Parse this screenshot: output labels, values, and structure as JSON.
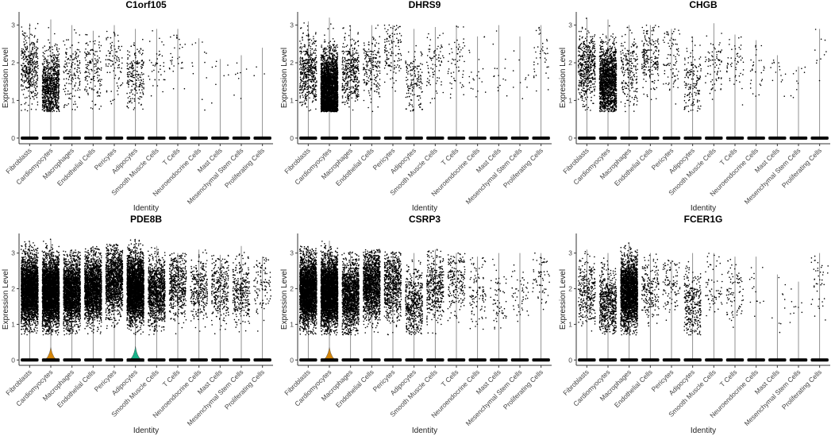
{
  "chart_data": [
    {
      "type": "violin",
      "title": "C1orf105",
      "xlabel": "Identity",
      "ylabel": "Expression Level",
      "ylim": [
        -0.15,
        3.35
      ],
      "yticks": [
        0,
        1,
        2,
        3
      ],
      "categories": [
        "Fibroblasts",
        "Cardiomyocytes",
        "Macrophages",
        "Endothelial Cells",
        "Pericytes",
        "Adipocytes",
        "Smooth Muscle Cells",
        "T Cells",
        "Neuroendocrine Cells",
        "Mast Cells",
        "Mesenchymal Stem Cells",
        "Proliferating Cells"
      ],
      "max": [
        3.05,
        3.15,
        3.0,
        2.85,
        3.0,
        2.9,
        2.9,
        2.9,
        2.65,
        2.1,
        2.2,
        2.4
      ],
      "expressing_points": [
        400,
        900,
        150,
        150,
        90,
        200,
        40,
        30,
        12,
        8,
        8,
        3
      ],
      "center": [
        1.85,
        1.35,
        1.8,
        1.85,
        2.1,
        1.6,
        1.9,
        2.0,
        1.8,
        1.6,
        1.5,
        1.9
      ],
      "violin_height": [
        0,
        0,
        0,
        0,
        0,
        0,
        0,
        0,
        0,
        0,
        0,
        0
      ]
    },
    {
      "type": "violin",
      "title": "DHRS9",
      "xlabel": "Identity",
      "ylabel": "Expression Level",
      "ylim": [
        -0.15,
        3.35
      ],
      "yticks": [
        0,
        1,
        2,
        3
      ],
      "categories": [
        "Fibroblasts",
        "Cardiomyocytes",
        "Macrophages",
        "Endothelial Cells",
        "Pericytes",
        "Adipocytes",
        "Smooth Muscle Cells",
        "T Cells",
        "Neuroendocrine Cells",
        "Mast Cells",
        "Mesenchymal Stem Cells",
        "Proliferating Cells"
      ],
      "max": [
        3.1,
        3.2,
        3.0,
        3.0,
        3.0,
        2.9,
        2.95,
        3.0,
        2.7,
        3.0,
        2.7,
        3.0
      ],
      "expressing_points": [
        500,
        3000,
        400,
        200,
        120,
        150,
        80,
        60,
        20,
        15,
        10,
        40
      ],
      "center": [
        1.8,
        1.3,
        1.8,
        1.9,
        2.2,
        1.5,
        1.9,
        2.0,
        1.7,
        1.8,
        1.7,
        2.1
      ],
      "violin_height": [
        0,
        0,
        0,
        0,
        0,
        0,
        0,
        0,
        0,
        0,
        0,
        0
      ]
    },
    {
      "type": "violin",
      "title": "CHGB",
      "xlabel": "Identity",
      "ylabel": "Expression Level",
      "ylim": [
        -0.15,
        3.35
      ],
      "yticks": [
        0,
        1,
        2,
        3
      ],
      "categories": [
        "Fibroblasts",
        "Cardiomyocytes",
        "Macrophages",
        "Endothelial Cells",
        "Pericytes",
        "Adipocytes",
        "Smooth Muscle Cells",
        "T Cells",
        "Neuroendocrine Cells",
        "Mast Cells",
        "Mesenchymal Stem Cells",
        "Proliferating Cells"
      ],
      "max": [
        3.2,
        3.15,
        3.0,
        3.0,
        2.9,
        2.7,
        3.05,
        2.75,
        2.6,
        2.2,
        1.9,
        2.9
      ],
      "expressing_points": [
        500,
        1500,
        200,
        200,
        80,
        150,
        80,
        50,
        30,
        15,
        10,
        10
      ],
      "center": [
        1.9,
        1.5,
        1.8,
        2.1,
        2.1,
        1.5,
        2.0,
        2.1,
        1.8,
        1.8,
        1.5,
        2.2
      ],
      "violin_height": [
        0,
        0,
        0,
        0,
        0,
        0,
        0,
        0,
        0,
        0,
        0,
        0
      ]
    },
    {
      "type": "violin",
      "title": "PDE8B",
      "xlabel": "Identity",
      "ylabel": "Expression Level",
      "ylim": [
        -0.15,
        3.55
      ],
      "yticks": [
        0,
        1,
        2,
        3
      ],
      "categories": [
        "Fibroblasts",
        "Cardiomyocytes",
        "Macrophages",
        "Endothelial Cells",
        "Pericytes",
        "Adipocytes",
        "Smooth Muscle Cells",
        "T Cells",
        "Neuroendocrine Cells",
        "Mast Cells",
        "Mesenchymal Stem Cells",
        "Proliferating Cells"
      ],
      "max": [
        3.35,
        3.4,
        3.1,
        3.2,
        3.25,
        3.4,
        3.2,
        3.0,
        3.1,
        2.95,
        3.2,
        2.9
      ],
      "expressing_points": [
        3000,
        4000,
        2200,
        2000,
        1400,
        3000,
        1100,
        500,
        300,
        300,
        300,
        100
      ],
      "center": [
        1.95,
        1.9,
        1.9,
        2.0,
        2.2,
        2.0,
        1.9,
        2.1,
        2.0,
        2.0,
        1.9,
        2.2
      ],
      "violin_height": [
        0,
        0.35,
        0,
        0,
        0,
        0.38,
        0,
        0,
        0,
        0,
        0,
        0
      ],
      "violin_colors": {
        "Cardiomyocytes": "#d4860b",
        "Adipocytes": "#1ab38a"
      }
    },
    {
      "type": "violin",
      "title": "CSRP3",
      "xlabel": "Identity",
      "ylabel": "Expression Level",
      "ylim": [
        -0.15,
        3.55
      ],
      "yticks": [
        0,
        1,
        2,
        3
      ],
      "categories": [
        "Fibroblasts",
        "Cardiomyocytes",
        "Macrophages",
        "Endothelial Cells",
        "Pericytes",
        "Adipocytes",
        "Smooth Muscle Cells",
        "T Cells",
        "Neuroendocrine Cells",
        "Mast Cells",
        "Mesenchymal Stem Cells",
        "Proliferating Cells"
      ],
      "max": [
        3.2,
        3.35,
        3.05,
        3.1,
        3.05,
        3.0,
        3.1,
        3.0,
        2.9,
        3.0,
        3.0,
        3.0
      ],
      "expressing_points": [
        3000,
        4000,
        1500,
        1500,
        700,
        500,
        400,
        200,
        100,
        60,
        50,
        60
      ],
      "center": [
        1.95,
        1.9,
        1.8,
        2.1,
        2.1,
        1.6,
        2.0,
        2.2,
        1.9,
        1.8,
        1.8,
        2.2
      ],
      "violin_height": [
        0,
        0.35,
        0,
        0,
        0,
        0,
        0,
        0,
        0,
        0,
        0,
        0
      ],
      "violin_colors": {
        "Cardiomyocytes": "#d4860b"
      }
    },
    {
      "type": "violin",
      "title": "FCER1G",
      "xlabel": "Identity",
      "ylabel": "Expression Level",
      "ylim": [
        -0.15,
        3.55
      ],
      "yticks": [
        0,
        1,
        2,
        3
      ],
      "categories": [
        "Fibroblasts",
        "Cardiomyocytes",
        "Macrophages",
        "Endothelial Cells",
        "Pericytes",
        "Adipocytes",
        "Smooth Muscle Cells",
        "T Cells",
        "Neuroendocrine Cells",
        "Mast Cells",
        "Mesenchymal Stem Cells",
        "Proliferating Cells"
      ],
      "max": [
        3.1,
        3.0,
        3.3,
        3.0,
        2.8,
        3.0,
        3.0,
        2.9,
        2.9,
        2.4,
        2.2,
        3.0
      ],
      "expressing_points": [
        300,
        600,
        2500,
        200,
        100,
        300,
        60,
        80,
        15,
        10,
        10,
        40
      ],
      "center": [
        1.9,
        1.6,
        1.9,
        2.0,
        2.1,
        1.5,
        2.0,
        2.0,
        1.8,
        1.6,
        1.5,
        2.3
      ],
      "violin_height": [
        0,
        0,
        0,
        0,
        0,
        0,
        0,
        0,
        0,
        0,
        0,
        0
      ]
    }
  ]
}
